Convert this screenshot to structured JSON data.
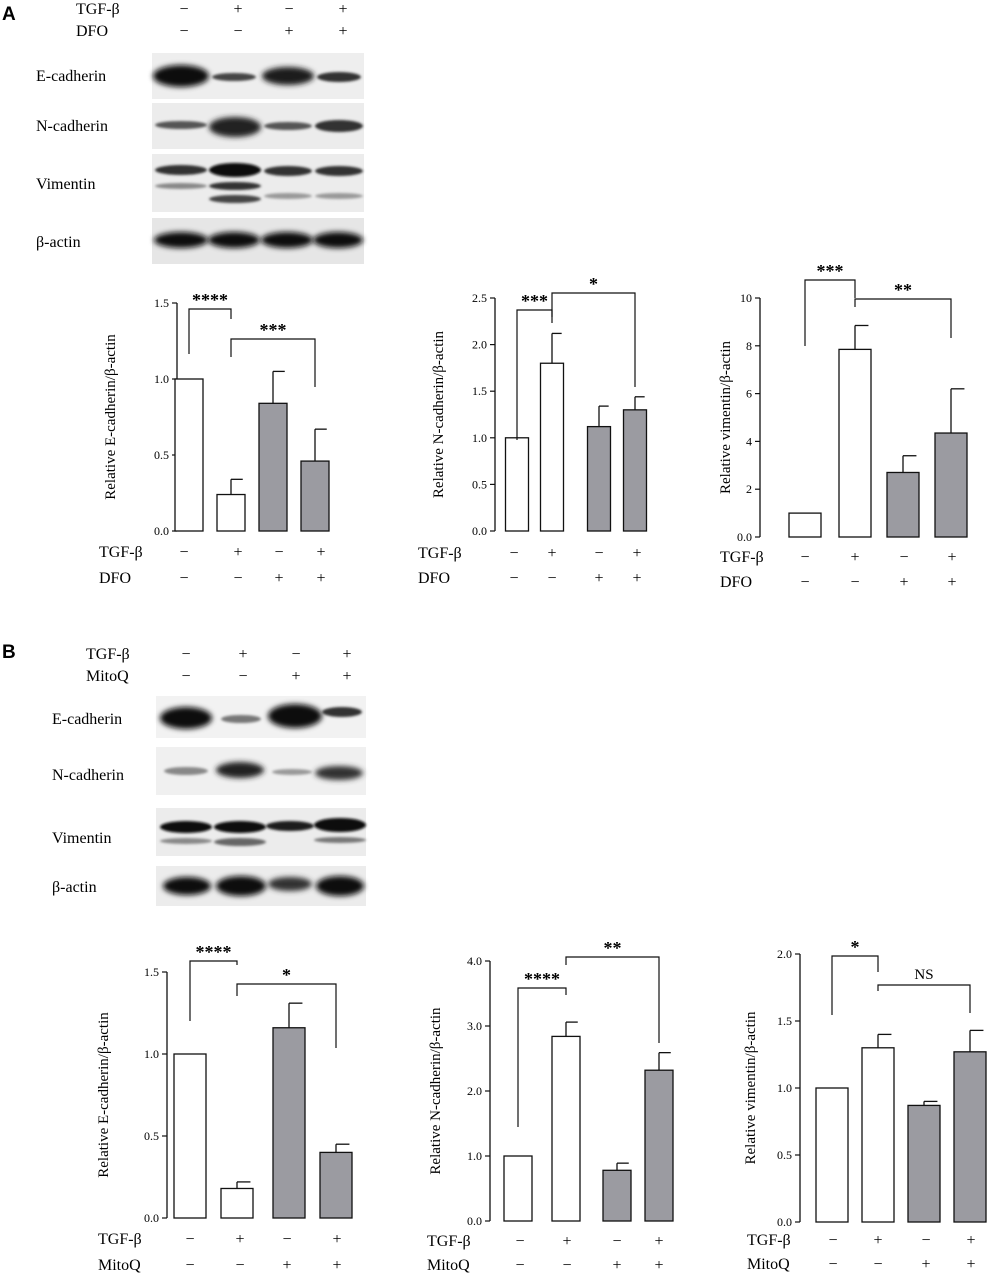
{
  "panels": [
    {
      "letter": "A",
      "blot": {
        "treatment_rows": [
          {
            "label": "TGF-β",
            "signs": [
              "−",
              "+",
              "−",
              "+"
            ]
          },
          {
            "label": "DFO",
            "signs": [
              "−",
              "−",
              "+",
              "+"
            ]
          }
        ],
        "protein_labels": [
          "E-cadherin",
          "N-cadherin",
          "Vimentin",
          "β-actin"
        ]
      },
      "treatment_table": [
        {
          "label": "TGF-β",
          "signs": [
            "−",
            "+",
            "−",
            "+"
          ]
        },
        {
          "label": "DFO",
          "signs": [
            "−",
            "−",
            "+",
            "+"
          ]
        }
      ]
    },
    {
      "letter": "B",
      "blot": {
        "treatment_rows": [
          {
            "label": "TGF-β",
            "signs": [
              "−",
              "+",
              "−",
              "+"
            ]
          },
          {
            "label": "MitoQ",
            "signs": [
              "−",
              "−",
              "+",
              "+"
            ]
          }
        ],
        "protein_labels": [
          "E-cadherin",
          "N-cadherin",
          "Vimentin",
          "β-actin"
        ]
      },
      "treatment_table": [
        {
          "label": "TGF-β",
          "signs": [
            "−",
            "+",
            "−",
            "+"
          ]
        },
        {
          "label": "MitoQ",
          "signs": [
            "−",
            "−",
            "+",
            "+"
          ]
        }
      ]
    }
  ],
  "colors": {
    "open_bar": "#ffffff",
    "filled_bar": "#9b9ba1",
    "stroke": "#111111"
  },
  "chart_data": [
    {
      "type": "bar",
      "panel": "A",
      "ylabel": "Relative E-cadherin/β-actin",
      "ylim": [
        0,
        1.5
      ],
      "yticks": [
        "0.0",
        "0.5",
        "1.0",
        "1.5"
      ],
      "values": [
        1.0,
        0.24,
        0.84,
        0.46
      ],
      "errors": [
        0,
        0.1,
        0.21,
        0.21
      ],
      "fills": [
        "open",
        "open",
        "filled",
        "filled"
      ],
      "significance": [
        {
          "from": 0,
          "to": 1,
          "label": "****"
        },
        {
          "from": 1,
          "to": 3,
          "label": "***"
        }
      ]
    },
    {
      "type": "bar",
      "panel": "A",
      "ylabel": "Relative N-cadherin/β-actin",
      "ylim": [
        0,
        2.5
      ],
      "yticks": [
        "0.0",
        "0.5",
        "1.0",
        "1.5",
        "2.0",
        "2.5"
      ],
      "values": [
        1.0,
        1.8,
        1.12,
        1.3
      ],
      "errors": [
        0,
        0.32,
        0.22,
        0.14
      ],
      "fills": [
        "open",
        "open",
        "filled",
        "filled"
      ],
      "significance": [
        {
          "from": 0,
          "to": 1,
          "label": "***"
        },
        {
          "from": 1,
          "to": 3,
          "label": "*"
        }
      ]
    },
    {
      "type": "bar",
      "panel": "A",
      "ylabel": "Relative vimentin/β-actin",
      "ylim": [
        0,
        10
      ],
      "yticks": [
        "0.0",
        "2",
        "4",
        "6",
        "8",
        "10"
      ],
      "values": [
        1.0,
        7.85,
        2.7,
        4.35
      ],
      "errors": [
        0,
        1.0,
        0.7,
        1.85
      ],
      "fills": [
        "open",
        "open",
        "filled",
        "filled"
      ],
      "significance": [
        {
          "from": 0,
          "to": 1,
          "label": "***"
        },
        {
          "from": 1,
          "to": 3,
          "label": "**"
        }
      ]
    },
    {
      "type": "bar",
      "panel": "B",
      "ylabel": "Relative E-cadherin/β-actin",
      "ylim": [
        0,
        1.5
      ],
      "yticks": [
        "0.0",
        "0.5",
        "1.0",
        "1.5"
      ],
      "values": [
        1.0,
        0.18,
        1.16,
        0.4
      ],
      "errors": [
        0,
        0.04,
        0.15,
        0.05
      ],
      "fills": [
        "open",
        "open",
        "filled",
        "filled"
      ],
      "significance": [
        {
          "from": 0,
          "to": 1,
          "label": "****"
        },
        {
          "from": 1,
          "to": 3,
          "label": "*"
        }
      ]
    },
    {
      "type": "bar",
      "panel": "B",
      "ylabel": "Relative N-cadherin/β-actin",
      "ylim": [
        0,
        4.0
      ],
      "yticks": [
        "0.0",
        "1.0",
        "2.0",
        "3.0",
        "4.0"
      ],
      "values": [
        1.0,
        2.84,
        0.78,
        2.32
      ],
      "errors": [
        0,
        0.22,
        0.11,
        0.27
      ],
      "fills": [
        "open",
        "open",
        "filled",
        "filled"
      ],
      "significance": [
        {
          "from": 0,
          "to": 1,
          "label": "****"
        },
        {
          "from": 1,
          "to": 3,
          "label": "**"
        }
      ]
    },
    {
      "type": "bar",
      "panel": "B",
      "ylabel": "Relative vimentin/β-actin",
      "ylim": [
        0,
        2.0
      ],
      "yticks": [
        "0.0",
        "0.5",
        "1.0",
        "1.5",
        "2.0"
      ],
      "values": [
        1.0,
        1.3,
        0.87,
        1.27
      ],
      "errors": [
        0,
        0.1,
        0.03,
        0.16
      ],
      "fills": [
        "open",
        "open",
        "filled",
        "filled"
      ],
      "significance": [
        {
          "from": 0,
          "to": 1,
          "label": "*"
        },
        {
          "from": 1,
          "to": 3,
          "label": "NS"
        }
      ]
    }
  ]
}
